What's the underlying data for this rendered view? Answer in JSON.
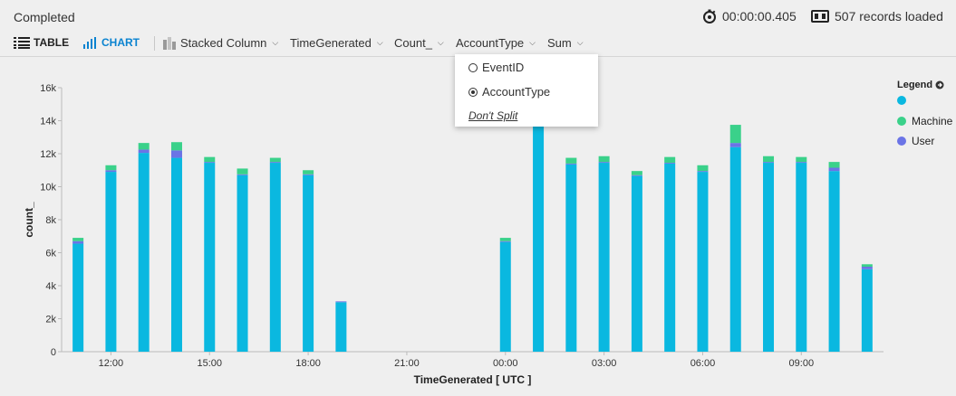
{
  "status": {
    "text": "Completed",
    "elapsed": "00:00:00.405",
    "records": "507 records loaded"
  },
  "toolbar": {
    "table_label": "TABLE",
    "chart_label": "CHART",
    "chart_type": "Stacked Column",
    "x_column": "TimeGenerated",
    "y_column": "Count_",
    "split_column": "AccountType",
    "aggregation": "Sum"
  },
  "split_menu": {
    "options": [
      "EventID",
      "AccountType"
    ],
    "selected": "AccountType",
    "no_split": "Don't Split"
  },
  "legend": {
    "title": "Legend",
    "items": [
      {
        "name": "",
        "color": "#0ab8e0"
      },
      {
        "name": "Machine",
        "color": "#3ad18a"
      },
      {
        "name": "User",
        "color": "#6b74e6"
      }
    ]
  },
  "chart_data": {
    "type": "bar",
    "stacked": true,
    "xlabel": "TimeGenerated [ UTC ]",
    "ylabel": "count_",
    "ylim": [
      0,
      16000
    ],
    "yticks": [
      0,
      2000,
      4000,
      6000,
      8000,
      10000,
      12000,
      14000,
      16000
    ],
    "ytick_labels": [
      "0",
      "2k",
      "4k",
      "6k",
      "8k",
      "10k",
      "12k",
      "14k",
      "16k"
    ],
    "xticks": [
      {
        "label": "12:00",
        "hour": 1
      },
      {
        "label": "15:00",
        "hour": 4
      },
      {
        "label": "18:00",
        "hour": 7
      },
      {
        "label": "21:00",
        "hour": 10
      },
      {
        "label": "00:00",
        "hour": 13
      },
      {
        "label": "03:00",
        "hour": 16
      },
      {
        "label": "06:00",
        "hour": 19
      },
      {
        "label": "09:00",
        "hour": 22
      }
    ],
    "hours": 25,
    "categories": [
      "11:00",
      "12:00",
      "13:00",
      "14:00",
      "15:00",
      "16:00",
      "17:00",
      "18:00",
      "19:00",
      "20:00",
      "21:00",
      "22:00",
      "23:00",
      "00:00",
      "01:00",
      "02:00",
      "03:00",
      "04:00",
      "05:00",
      "06:00",
      "07:00",
      "08:00",
      "09:00",
      "10:00",
      "11:00"
    ],
    "series": [
      {
        "name": "",
        "color": "#0ab8e0",
        "values": [
          6550,
          10900,
          12050,
          11750,
          11450,
          10700,
          11450,
          10700,
          3000,
          0,
          0,
          0,
          0,
          6650,
          13700,
          11350,
          11450,
          10650,
          11400,
          10900,
          12400,
          11450,
          11450,
          10950,
          5000
        ]
      },
      {
        "name": "User",
        "color": "#6b74e6",
        "values": [
          150,
          100,
          200,
          450,
          50,
          50,
          50,
          50,
          50,
          0,
          0,
          0,
          0,
          50,
          100,
          50,
          50,
          50,
          50,
          50,
          250,
          50,
          50,
          200,
          150
        ]
      },
      {
        "name": "Machine",
        "color": "#3ad18a",
        "values": [
          200,
          300,
          400,
          500,
          300,
          350,
          250,
          250,
          0,
          0,
          0,
          0,
          0,
          200,
          400,
          350,
          350,
          250,
          350,
          350,
          1100,
          350,
          300,
          350,
          150
        ]
      }
    ]
  }
}
